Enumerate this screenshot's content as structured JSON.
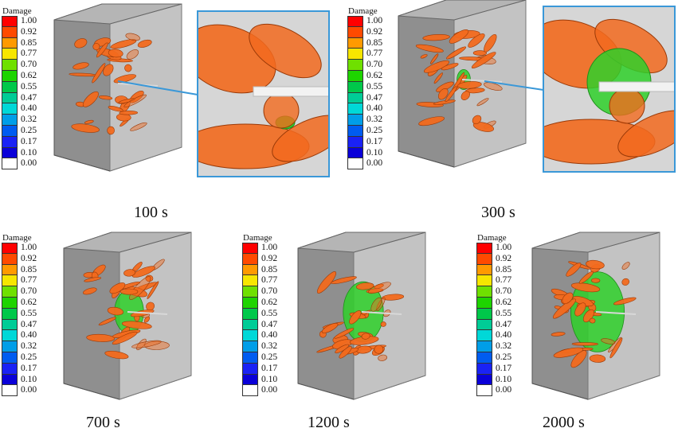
{
  "legend": {
    "title": "Damage",
    "levels": [
      {
        "label": "1.00",
        "color": "#ff0000"
      },
      {
        "label": "0.92",
        "color": "#ff4a00"
      },
      {
        "label": "0.85",
        "color": "#ff9a00"
      },
      {
        "label": "0.77",
        "color": "#f7e600"
      },
      {
        "label": "0.70",
        "color": "#6fe000"
      },
      {
        "label": "0.62",
        "color": "#1ed400"
      },
      {
        "label": "0.55",
        "color": "#00c84a"
      },
      {
        "label": "0.47",
        "color": "#00cc96"
      },
      {
        "label": "0.40",
        "color": "#00d8d8"
      },
      {
        "label": "0.32",
        "color": "#009ee8"
      },
      {
        "label": "0.25",
        "color": "#005cf0"
      },
      {
        "label": "0.17",
        "color": "#1a22f5"
      },
      {
        "label": "0.10",
        "color": "#0a00d8"
      },
      {
        "label": "0.00",
        "color": "#ffffff"
      }
    ]
  },
  "panels": [
    {
      "caption": "100 s",
      "damage_extent": 0.0
    },
    {
      "caption": "300 s",
      "damage_extent": 0.1
    },
    {
      "caption": "700 s",
      "damage_extent": 0.45
    },
    {
      "caption": "1200 s",
      "damage_extent": 0.7
    },
    {
      "caption": "2000 s",
      "damage_extent": 1.0
    }
  ],
  "colors": {
    "fracture": "#f26a1e",
    "fracture_edge": "#9a3a08",
    "damage_zone": "#2fd02a",
    "block_shadow": "#8f8f8f",
    "block_face": "#c9c9c9",
    "connector": "#3a98d8"
  }
}
